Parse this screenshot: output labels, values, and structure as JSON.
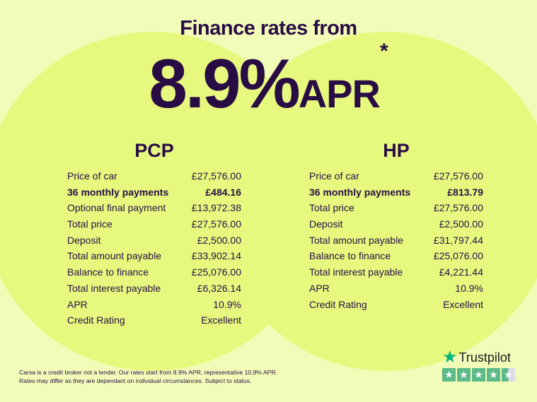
{
  "header": {
    "title": "Finance rates from",
    "rate": "8.9%",
    "apr": "APR",
    "asterisk": "*"
  },
  "pcp": {
    "title": "PCP",
    "rows": [
      {
        "label": "Price of car",
        "value": "£27,576.00",
        "bold": false
      },
      {
        "label": "36 monthly payments",
        "value": "£484.16",
        "bold": true
      },
      {
        "label": "Optional final payment",
        "value": "£13,972.38",
        "bold": false
      },
      {
        "label": "Total price",
        "value": "£27,576.00",
        "bold": false
      },
      {
        "label": "Deposit",
        "value": "£2,500.00",
        "bold": false
      },
      {
        "label": "Total amount payable",
        "value": "£33,902.14",
        "bold": false
      },
      {
        "label": "Balance to finance",
        "value": "£25,076.00",
        "bold": false
      },
      {
        "label": "Total interest payable",
        "value": "£6,326.14",
        "bold": false
      },
      {
        "label": "APR",
        "value": "10.9%",
        "bold": false
      },
      {
        "label": "Credit Rating",
        "value": "Excellent",
        "bold": false
      }
    ]
  },
  "hp": {
    "title": "HP",
    "rows": [
      {
        "label": "Price of car",
        "value": "£27,576.00",
        "bold": false
      },
      {
        "label": "36 monthly payments",
        "value": "£813.79",
        "bold": true
      },
      {
        "label": "Total price",
        "value": "£27,576.00",
        "bold": false
      },
      {
        "label": "Deposit",
        "value": "£2,500.00",
        "bold": false
      },
      {
        "label": "Total amount payable",
        "value": "£31,797.44",
        "bold": false
      },
      {
        "label": "Balance to finance",
        "value": "£25,076.00",
        "bold": false
      },
      {
        "label": "Total interest payable",
        "value": "£4,221.44",
        "bold": false
      },
      {
        "label": "APR",
        "value": "10.9%",
        "bold": false
      },
      {
        "label": "Credit Rating",
        "value": "Excellent",
        "bold": false
      }
    ]
  },
  "disclaimer": {
    "line1": "Carsa is a credit broker not a lender. Our rates start from 8.9% APR, representative 10.9% APR.",
    "line2": "Rates may differ as they are dependant on individual circumstances. Subject to status."
  },
  "trustpilot": {
    "name": "Trustpilot",
    "rating_stars": 4.5,
    "max_stars": 5
  },
  "colors": {
    "background": "#f1fcb8",
    "circle": "#e6f97e",
    "text": "#2a0c45",
    "trustpilot_green": "#04b67a"
  }
}
